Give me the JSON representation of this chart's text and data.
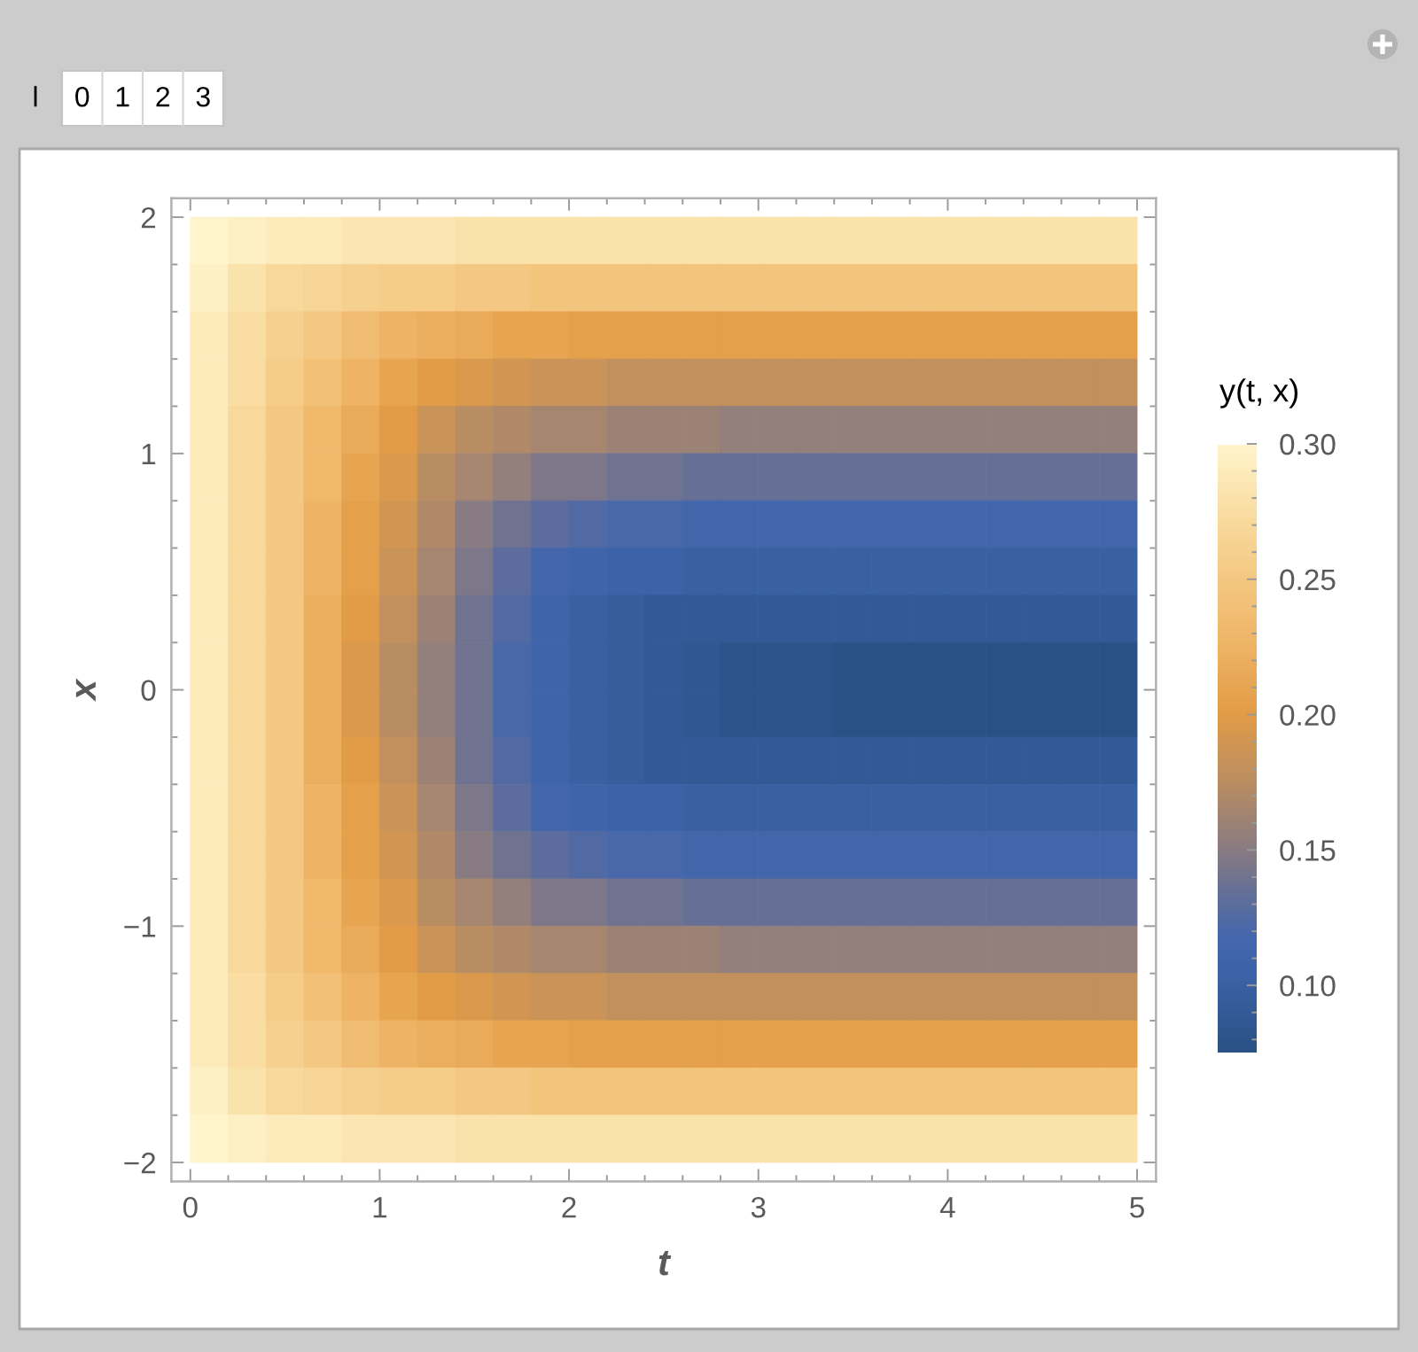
{
  "chart_data": {
    "type": "heatmap",
    "annotations": [
      "l",
      "0",
      "1",
      "2",
      "3"
    ],
    "xlabel": "t",
    "ylabel": "x",
    "clabel": "y(t, x)",
    "x": [
      0.1,
      0.3,
      0.5,
      0.7,
      0.9,
      1.1,
      1.3,
      1.5,
      1.7,
      1.9,
      2.1,
      2.3,
      2.5,
      2.7,
      2.9,
      3.1,
      3.3,
      3.5,
      3.7,
      3.9,
      4.1,
      4.3,
      4.5,
      4.7,
      4.9
    ],
    "cells": [
      [
        0.3,
        0.295,
        0.29,
        0.29,
        0.285,
        0.285,
        0.285,
        0.28,
        0.28,
        0.28,
        0.28,
        0.28,
        0.28,
        0.28,
        0.28,
        0.28,
        0.28,
        0.28,
        0.28,
        0.28,
        0.28,
        0.28,
        0.28,
        0.28,
        0.28
      ],
      [
        0.295,
        0.28,
        0.27,
        0.265,
        0.26,
        0.255,
        0.255,
        0.25,
        0.25,
        0.245,
        0.245,
        0.245,
        0.245,
        0.245,
        0.245,
        0.245,
        0.245,
        0.245,
        0.245,
        0.245,
        0.245,
        0.245,
        0.245,
        0.245,
        0.245
      ],
      [
        0.29,
        0.275,
        0.26,
        0.25,
        0.235,
        0.225,
        0.22,
        0.215,
        0.21,
        0.21,
        0.205,
        0.205,
        0.205,
        0.205,
        0.205,
        0.205,
        0.205,
        0.205,
        0.205,
        0.205,
        0.205,
        0.205,
        0.205,
        0.205,
        0.205
      ],
      [
        0.29,
        0.275,
        0.255,
        0.24,
        0.225,
        0.21,
        0.2,
        0.195,
        0.19,
        0.185,
        0.185,
        0.18,
        0.18,
        0.18,
        0.18,
        0.18,
        0.18,
        0.18,
        0.18,
        0.18,
        0.18,
        0.18,
        0.18,
        0.18,
        0.18
      ],
      [
        0.29,
        0.27,
        0.25,
        0.23,
        0.215,
        0.2,
        0.185,
        0.175,
        0.17,
        0.165,
        0.165,
        0.16,
        0.16,
        0.16,
        0.155,
        0.155,
        0.155,
        0.155,
        0.155,
        0.155,
        0.155,
        0.155,
        0.155,
        0.155,
        0.155
      ],
      [
        0.29,
        0.27,
        0.25,
        0.23,
        0.21,
        0.195,
        0.175,
        0.165,
        0.155,
        0.145,
        0.145,
        0.14,
        0.14,
        0.135,
        0.135,
        0.135,
        0.135,
        0.135,
        0.135,
        0.135,
        0.135,
        0.135,
        0.135,
        0.135,
        0.135
      ],
      [
        0.29,
        0.27,
        0.25,
        0.225,
        0.205,
        0.19,
        0.17,
        0.15,
        0.14,
        0.13,
        0.125,
        0.12,
        0.12,
        0.115,
        0.115,
        0.115,
        0.115,
        0.115,
        0.115,
        0.115,
        0.115,
        0.115,
        0.115,
        0.115,
        0.115
      ],
      [
        0.29,
        0.27,
        0.25,
        0.225,
        0.205,
        0.185,
        0.165,
        0.145,
        0.13,
        0.115,
        0.11,
        0.105,
        0.105,
        0.1,
        0.1,
        0.1,
        0.1,
        0.1,
        0.1,
        0.1,
        0.1,
        0.1,
        0.1,
        0.1,
        0.1
      ],
      [
        0.29,
        0.27,
        0.25,
        0.22,
        0.2,
        0.18,
        0.16,
        0.14,
        0.125,
        0.11,
        0.1,
        0.095,
        0.09,
        0.09,
        0.09,
        0.09,
        0.09,
        0.09,
        0.09,
        0.09,
        0.09,
        0.09,
        0.09,
        0.09,
        0.09
      ],
      [
        0.29,
        0.27,
        0.25,
        0.22,
        0.195,
        0.175,
        0.155,
        0.14,
        0.12,
        0.11,
        0.1,
        0.095,
        0.09,
        0.085,
        0.08,
        0.08,
        0.08,
        0.075,
        0.075,
        0.075,
        0.075,
        0.075,
        0.075,
        0.075,
        0.075
      ],
      [
        0.29,
        0.27,
        0.25,
        0.22,
        0.195,
        0.175,
        0.155,
        0.14,
        0.12,
        0.11,
        0.1,
        0.095,
        0.09,
        0.085,
        0.08,
        0.08,
        0.08,
        0.075,
        0.075,
        0.075,
        0.075,
        0.075,
        0.075,
        0.075,
        0.075
      ],
      [
        0.29,
        0.27,
        0.25,
        0.22,
        0.2,
        0.18,
        0.16,
        0.14,
        0.125,
        0.11,
        0.1,
        0.095,
        0.09,
        0.09,
        0.09,
        0.09,
        0.09,
        0.09,
        0.09,
        0.09,
        0.09,
        0.09,
        0.09,
        0.09,
        0.09
      ],
      [
        0.29,
        0.27,
        0.25,
        0.225,
        0.205,
        0.185,
        0.165,
        0.145,
        0.13,
        0.115,
        0.11,
        0.105,
        0.105,
        0.1,
        0.1,
        0.1,
        0.1,
        0.1,
        0.1,
        0.1,
        0.1,
        0.1,
        0.1,
        0.1,
        0.1
      ],
      [
        0.29,
        0.27,
        0.25,
        0.225,
        0.205,
        0.19,
        0.17,
        0.15,
        0.14,
        0.13,
        0.125,
        0.12,
        0.12,
        0.115,
        0.115,
        0.115,
        0.115,
        0.115,
        0.115,
        0.115,
        0.115,
        0.115,
        0.115,
        0.115,
        0.115
      ],
      [
        0.29,
        0.27,
        0.25,
        0.23,
        0.21,
        0.195,
        0.175,
        0.165,
        0.155,
        0.145,
        0.145,
        0.14,
        0.14,
        0.135,
        0.135,
        0.135,
        0.135,
        0.135,
        0.135,
        0.135,
        0.135,
        0.135,
        0.135,
        0.135,
        0.135
      ],
      [
        0.29,
        0.27,
        0.25,
        0.23,
        0.215,
        0.2,
        0.185,
        0.175,
        0.17,
        0.165,
        0.165,
        0.16,
        0.16,
        0.16,
        0.155,
        0.155,
        0.155,
        0.155,
        0.155,
        0.155,
        0.155,
        0.155,
        0.155,
        0.155,
        0.155
      ],
      [
        0.29,
        0.275,
        0.255,
        0.24,
        0.225,
        0.21,
        0.2,
        0.195,
        0.19,
        0.185,
        0.185,
        0.18,
        0.18,
        0.18,
        0.18,
        0.18,
        0.18,
        0.18,
        0.18,
        0.18,
        0.18,
        0.18,
        0.18,
        0.18,
        0.18
      ],
      [
        0.29,
        0.275,
        0.26,
        0.25,
        0.235,
        0.225,
        0.22,
        0.215,
        0.21,
        0.21,
        0.205,
        0.205,
        0.205,
        0.205,
        0.205,
        0.205,
        0.205,
        0.205,
        0.205,
        0.205,
        0.205,
        0.205,
        0.205,
        0.205,
        0.205
      ],
      [
        0.295,
        0.28,
        0.27,
        0.265,
        0.26,
        0.255,
        0.255,
        0.25,
        0.25,
        0.245,
        0.245,
        0.245,
        0.245,
        0.245,
        0.245,
        0.245,
        0.245,
        0.245,
        0.245,
        0.245,
        0.245,
        0.245,
        0.245,
        0.245,
        0.245
      ],
      [
        0.3,
        0.295,
        0.29,
        0.29,
        0.285,
        0.285,
        0.285,
        0.28,
        0.28,
        0.28,
        0.28,
        0.28,
        0.28,
        0.28,
        0.28,
        0.28,
        0.28,
        0.28,
        0.28,
        0.28,
        0.28,
        0.28,
        0.28,
        0.28,
        0.28
      ]
    ],
    "xlim": [
      -0.1,
      5.1
    ],
    "ylim": [
      -2.08,
      2.08
    ],
    "xticks": [
      0,
      1,
      2,
      3,
      4,
      5,
      {
        "value": 0.2,
        "label": null
      },
      {
        "value": 0.4,
        "label": null
      },
      {
        "value": 0.6,
        "label": null
      },
      {
        "value": 0.8,
        "label": null
      },
      {
        "value": 1.2,
        "label": null
      },
      {
        "value": 1.4,
        "label": null
      },
      {
        "value": 1.6,
        "label": null
      },
      {
        "value": 1.8,
        "label": null
      },
      {
        "value": 2.2,
        "label": null
      },
      {
        "value": 2.4,
        "label": null
      },
      {
        "value": 2.6,
        "label": null
      },
      {
        "value": 2.8,
        "label": null
      },
      {
        "value": 3.2,
        "label": null
      },
      {
        "value": 3.4,
        "label": null
      },
      {
        "value": 3.6,
        "label": null
      },
      {
        "value": 3.8,
        "label": null
      },
      {
        "value": 4.2,
        "label": null
      },
      {
        "value": 4.4,
        "label": null
      },
      {
        "value": 4.6,
        "label": null
      },
      {
        "value": 4.8,
        "label": null
      }
    ],
    "yticks": [
      {
        "value": -2,
        "label": "−2"
      },
      {
        "value": -1,
        "label": "−1"
      },
      0,
      1,
      2,
      {
        "value": -1.8,
        "label": null
      },
      {
        "value": -1.6,
        "label": null
      },
      {
        "value": -1.4,
        "label": null
      },
      {
        "value": -1.2,
        "label": null
      },
      {
        "value": -0.8,
        "label": null
      },
      {
        "value": -0.6,
        "label": null
      },
      {
        "value": -0.4,
        "label": null
      },
      {
        "value": -0.2,
        "label": null
      },
      {
        "value": 0.2,
        "label": null
      },
      {
        "value": 0.4,
        "label": null
      },
      {
        "value": 0.6,
        "label": null
      },
      {
        "value": 0.8,
        "label": null
      },
      {
        "value": 1.2,
        "label": null
      },
      {
        "value": 1.4,
        "label": null
      },
      {
        "value": 1.6,
        "label": null
      },
      {
        "value": 1.8,
        "label": null
      }
    ],
    "clim": [
      0.075,
      0.3
    ],
    "cticks": [
      {
        "value": 0.1,
        "label": "0.10"
      },
      0.15,
      {
        "value": 0.2,
        "label": "0.20"
      },
      0.25,
      {
        "value": 0.3,
        "label": "0.30"
      },
      {
        "value": 0.08,
        "label": null
      },
      {
        "value": 0.09,
        "label": null
      },
      {
        "value": 0.11,
        "label": null
      },
      {
        "value": 0.12,
        "label": null
      },
      {
        "value": 0.13,
        "label": null
      },
      {
        "value": 0.14,
        "label": null
      },
      {
        "value": 0.16,
        "label": null
      },
      {
        "value": 0.17,
        "label": null
      },
      {
        "value": 0.18,
        "label": null
      },
      {
        "value": 0.19,
        "label": null
      },
      {
        "value": 0.21,
        "label": null
      },
      {
        "value": 0.22,
        "label": null
      },
      {
        "value": 0.23,
        "label": null
      },
      {
        "value": 0.24,
        "label": null
      },
      {
        "value": 0.26,
        "label": null
      },
      {
        "value": 0.27,
        "label": null
      },
      {
        "value": 0.28,
        "label": null
      },
      {
        "value": 0.29,
        "label": null
      }
    ]
  }
}
